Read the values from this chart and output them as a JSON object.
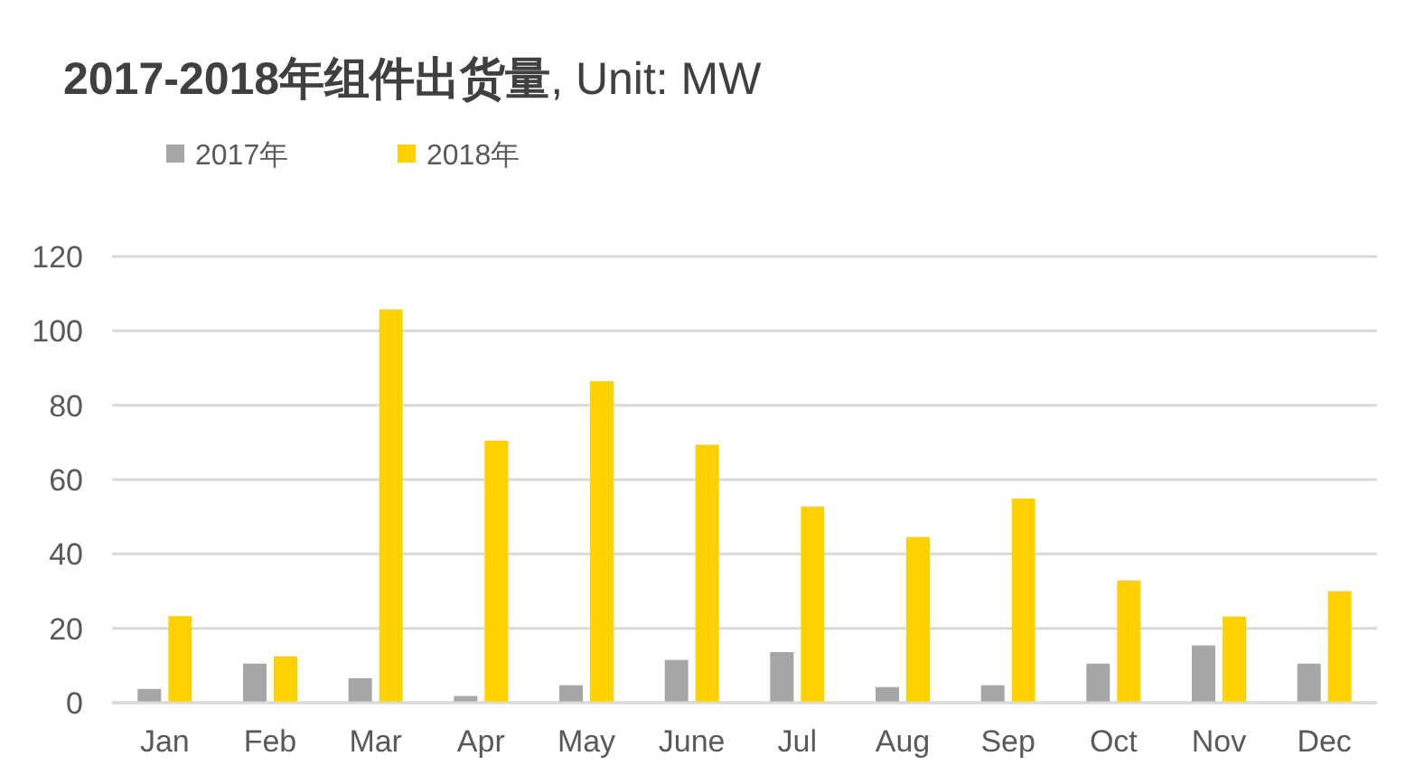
{
  "chart_data": {
    "type": "bar",
    "title": "**2017-2018年组件出货量**, Unit: MW",
    "categories": [
      "Jan",
      "Feb",
      "Mar",
      "Apr",
      "May",
      "June",
      "Jul",
      "Aug",
      "Sep",
      "Oct",
      "Nov",
      "Dec"
    ],
    "series": [
      {
        "name": "2017年",
        "color": "#a6a6a6",
        "values": [
          3.7,
          10.5,
          6.6,
          1.8,
          4.7,
          11.5,
          13.6,
          4.2,
          4.7,
          10.5,
          15.4,
          10.5
        ]
      },
      {
        "name": "2018年",
        "color": "#ffd100",
        "values": [
          23.3,
          12.5,
          105.8,
          70.5,
          86.5,
          69.4,
          52.8,
          44.6,
          54.9,
          32.9,
          23.2,
          30
        ]
      }
    ],
    "ylim": [
      0,
      120
    ],
    "yticks": [
      0,
      20,
      40,
      60,
      80,
      100,
      120
    ],
    "grid": "y",
    "legend": "top left"
  }
}
